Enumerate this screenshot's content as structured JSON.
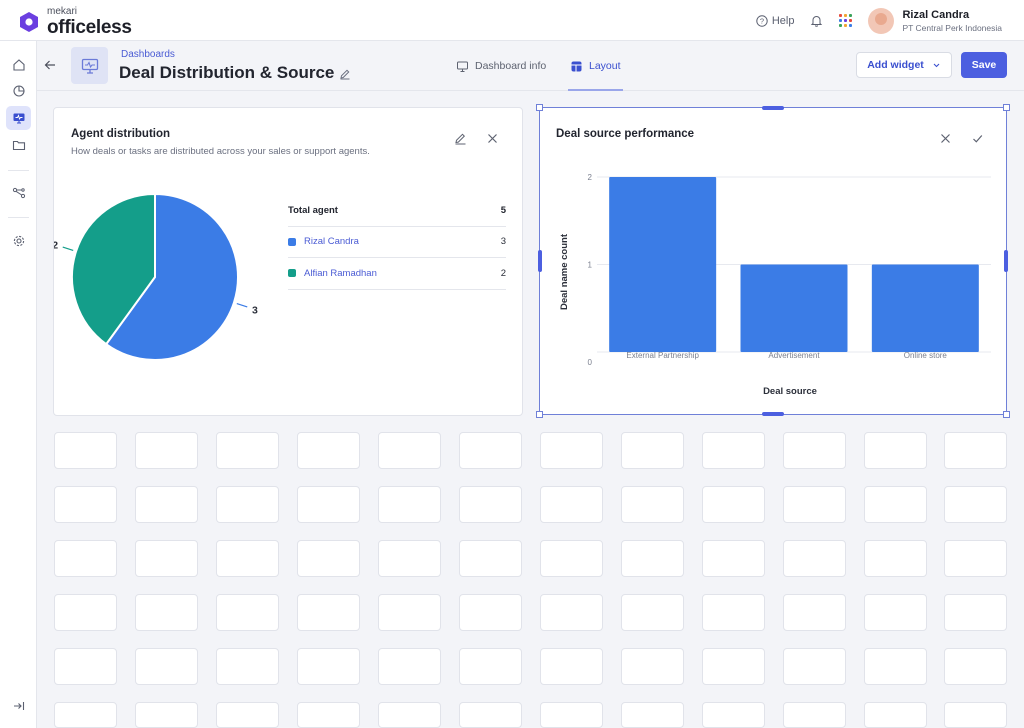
{
  "brand": {
    "company": "mekari",
    "product": "officeless"
  },
  "header": {
    "help_label": "Help"
  },
  "user": {
    "name": "Rizal Candra",
    "company": "PT Central Perk Indonesia"
  },
  "page": {
    "breadcrumb": "Dashboards",
    "title": "Deal Distribution & Source",
    "tabs": [
      {
        "label": "Dashboard info"
      },
      {
        "label": "Layout"
      }
    ],
    "add_widget_label": "Add widget",
    "save_label": "Save"
  },
  "widgets": {
    "agent": {
      "title": "Agent distribution",
      "subtitle": "How deals or tasks are distributed across your sales or support agents.",
      "table_header": {
        "label": "Total agent",
        "value": "5"
      },
      "rows": [
        {
          "name": "Rizal Candra",
          "value": "3",
          "color": "#3b7ce6"
        },
        {
          "name": "Alfian Ramadhan",
          "value": "2",
          "color": "#149e8a"
        }
      ]
    },
    "source": {
      "title": "Deal source performance"
    }
  },
  "chart_data": [
    {
      "type": "pie",
      "title": "Agent distribution",
      "labels": [
        "Rizal Candra",
        "Alfian Ramadhan"
      ],
      "values": [
        3,
        2
      ],
      "data_labels": [
        "3",
        "2"
      ],
      "colors": [
        "#3b7ce6",
        "#149e8a"
      ]
    },
    {
      "type": "bar",
      "title": "Deal source performance",
      "categories": [
        "External Partnership",
        "Advertisement",
        "Online store"
      ],
      "values": [
        2,
        1,
        1
      ],
      "xlabel": "Deal source",
      "ylabel": "Deal name count",
      "yticks": [
        "0",
        "1",
        "2"
      ],
      "ylim": [
        0,
        2
      ],
      "color": "#3b7ce6",
      "grid": true
    }
  ]
}
